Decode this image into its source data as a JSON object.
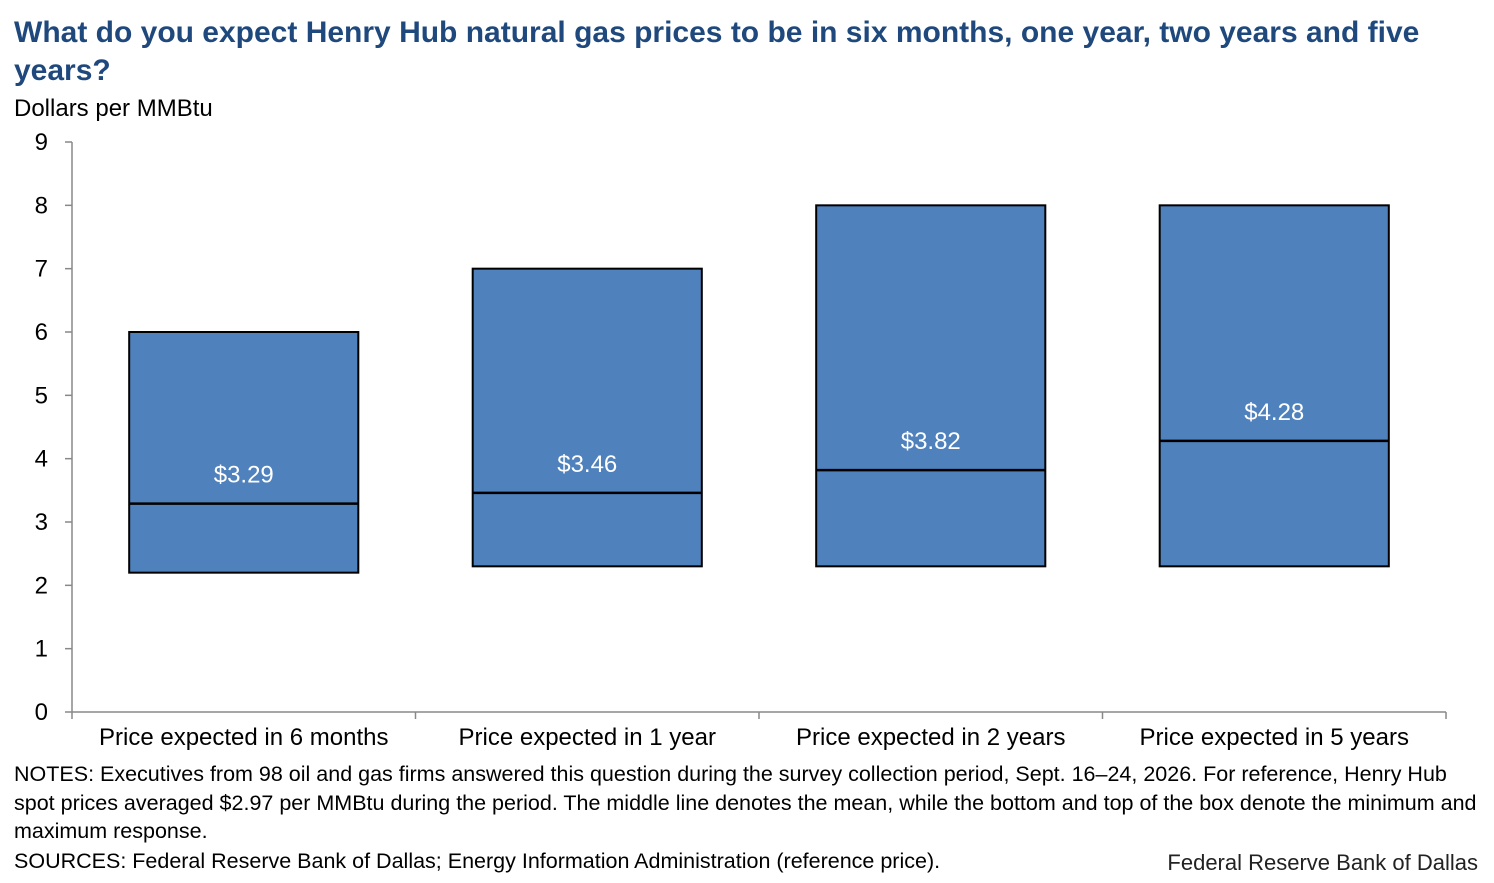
{
  "title": "What do you expect Henry Hub natural gas prices to be in six months, one year, two years and five years?",
  "units_label": "Dollars per MMBtu",
  "notes": "NOTES: Executives from 98 oil and gas firms answered this question during the survey collection period, Sept. 16–24, 2026. For reference, Henry Hub spot prices averaged $2.97 per MMBtu during the period. The middle line denotes the mean, while the bottom and top of the box denote the minimum and maximum response.",
  "sources": "SOURCES: Federal Reserve Bank of Dallas; Energy Information Administration (reference price).",
  "credit": "Federal Reserve Bank of Dallas",
  "colors": {
    "title": "#1f497d",
    "box_fill": "#4f81bd",
    "box_stroke": "#000000",
    "label_text": "#ffffff"
  },
  "chart_data": {
    "type": "box",
    "categories": [
      "Price expected in 6 months",
      "Price expected in 1 year",
      "Price expected in 2 years",
      "Price expected in 5 years"
    ],
    "min": [
      2.2,
      2.3,
      2.3,
      2.3
    ],
    "max": [
      6,
      7,
      8,
      8
    ],
    "mean": [
      3.29,
      3.46,
      3.82,
      4.28
    ],
    "mean_labels": [
      "$3.29",
      "$3.46",
      "$3.82",
      "$4.28"
    ],
    "ylim": [
      0,
      9
    ],
    "yticks": [
      0,
      1,
      2,
      3,
      4,
      5,
      6,
      7,
      8,
      9
    ],
    "ylabel": "Dollars per MMBtu",
    "grid": false,
    "legend": "none"
  }
}
